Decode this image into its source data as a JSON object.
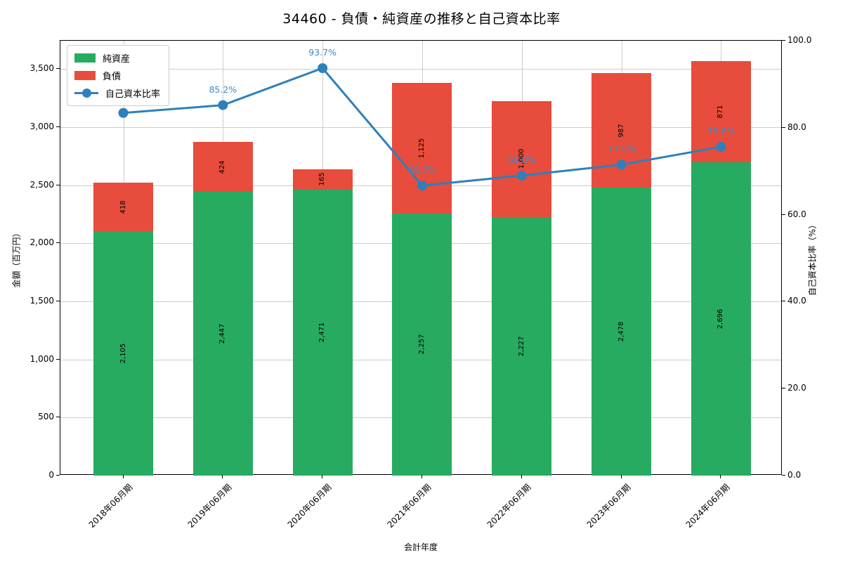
{
  "title": "34460 - 負債・純資産の推移と自己資本比率",
  "axes": {
    "xlabel": "会計年度",
    "ylabel_left": "金額（百万円）",
    "ylabel_right": "自己資本比率（%）"
  },
  "colors": {
    "equity_green": "#27ab60",
    "debt_red": "#e74c3c",
    "ratio_blue": "#2e80bc",
    "pct_text_blue": "#3d8bc4",
    "grid": "#cccccc",
    "spine": "#000000"
  },
  "chart_data": {
    "type": "bar",
    "stacked": true,
    "grid": true,
    "legend_position": "upper left",
    "title": "34460 - 負債・純資産の推移と自己資本比率",
    "xlabel": "会計年度",
    "ylabel_left": "金額（百万円）",
    "ylabel_right": "自己資本比率（%）",
    "ylim_left": [
      0,
      3745
    ],
    "ylim_right": [
      0,
      100
    ],
    "yticks_left": [
      0,
      500,
      1000,
      1500,
      2000,
      2500,
      3000,
      3500
    ],
    "yticks_right": [
      0.0,
      20.0,
      40.0,
      60.0,
      80.0,
      100.0
    ],
    "categories": [
      "2018年06月期",
      "2019年06月期",
      "2020年06月期",
      "2021年06月期",
      "2022年06月期",
      "2023年06月期",
      "2024年06月期"
    ],
    "series": [
      {
        "name": "純資産",
        "type": "bar",
        "color": "#27ab60",
        "values": [
          2105,
          2447,
          2471,
          2257,
          2227,
          2478,
          2696
        ]
      },
      {
        "name": "負債",
        "type": "bar",
        "color": "#e74c3c",
        "values": [
          418,
          424,
          165,
          1125,
          1000,
          987,
          871
        ]
      },
      {
        "name": "自己資本比率",
        "type": "line",
        "axis": "right",
        "color": "#2e80bc",
        "values": [
          83.4,
          85.2,
          93.7,
          66.7,
          69.0,
          71.5,
          75.6
        ]
      }
    ]
  }
}
